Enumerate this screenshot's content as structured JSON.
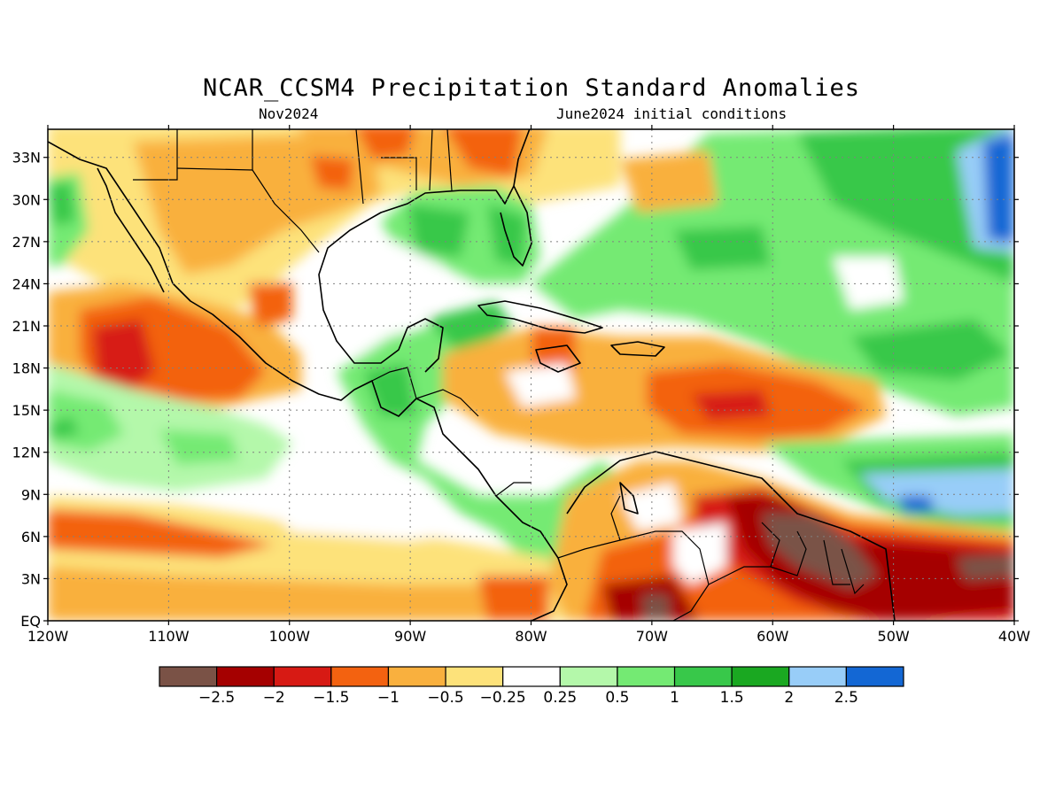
{
  "title": "NCAR_CCSM4 Precipitation Standard Anomalies",
  "subtitle_left": "Nov2024",
  "subtitle_right": "June2024 initial conditions",
  "map": {
    "lon_range": [
      -120,
      -40
    ],
    "lat_range": [
      0,
      35
    ],
    "lat_labels": [
      "EQ",
      "3N",
      "6N",
      "9N",
      "12N",
      "15N",
      "18N",
      "21N",
      "24N",
      "27N",
      "30N",
      "33N"
    ],
    "lat_values": [
      0,
      3,
      6,
      9,
      12,
      15,
      18,
      21,
      24,
      27,
      30,
      33
    ],
    "lon_labels": [
      "120W",
      "110W",
      "100W",
      "90W",
      "80W",
      "70W",
      "60W",
      "50W",
      "40W"
    ],
    "lon_values": [
      -120,
      -110,
      -100,
      -90,
      -80,
      -70,
      -60,
      -50,
      -40
    ],
    "grid": true
  },
  "legend": {
    "colors": [
      "#7a5246",
      "#a50000",
      "#d71a14",
      "#f36210",
      "#f9b03e",
      "#fde27a",
      "#ffffff",
      "#b4f8aa",
      "#74ea73",
      "#38c84a",
      "#1aa821",
      "#98cdf8",
      "#1367d4"
    ],
    "labels": [
      "−2.5",
      "−2",
      "−1.5",
      "−1",
      "−0.5",
      "−0.25",
      "0.25",
      "0.5",
      "1",
      "1.5",
      "2",
      "2.5"
    ]
  }
}
